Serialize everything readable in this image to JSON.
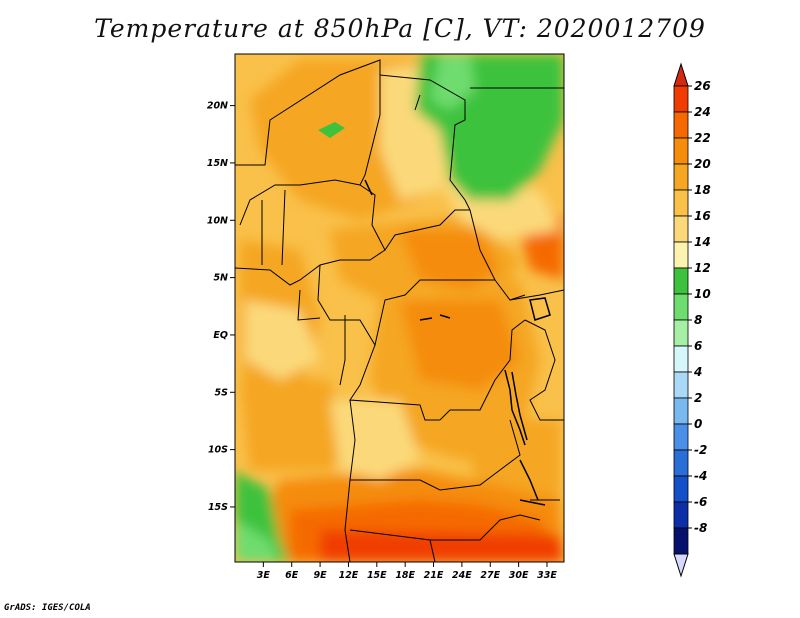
{
  "title": "Temperature at 850hPa [C], VT: 2020012709",
  "footer": "GrADS: IGES/COLA",
  "map": {
    "lat_labels": [
      "20N",
      "15N",
      "10N",
      "5N",
      "EQ",
      "5S",
      "10S",
      "15S"
    ],
    "lat_values": [
      20,
      15,
      10,
      5,
      0,
      -5,
      -10,
      -15
    ],
    "lon_labels": [
      "3E",
      "6E",
      "9E",
      "12E",
      "15E",
      "18E",
      "21E",
      "24E",
      "27E",
      "30E",
      "33E"
    ],
    "lon_values": [
      3,
      6,
      9,
      12,
      15,
      18,
      21,
      24,
      27,
      30,
      33
    ],
    "lon_range": [
      0,
      34.8
    ],
    "lat_range": [
      -19.8,
      24.5
    ]
  },
  "colorbar": {
    "labels": [
      "26",
      "24",
      "22",
      "20",
      "18",
      "16",
      "14",
      "12",
      "10",
      "8",
      "6",
      "4",
      "2",
      "0",
      "-2",
      "-4",
      "-6",
      "-8"
    ],
    "colors": [
      "#f03c00",
      "#f56a00",
      "#f58c0a",
      "#f5a623",
      "#f9c04a",
      "#fbd97a",
      "#fdf3b0",
      "#3ec23e",
      "#6edc6e",
      "#a6f0a6",
      "#d5f7fb",
      "#aad8f7",
      "#7ab8f0",
      "#4a90e8",
      "#2a6fd8",
      "#1550c8",
      "#0c2fa8",
      "#06116e"
    ],
    "top_color": "#d62a10",
    "bottom_color": "#d8d8fc"
  }
}
